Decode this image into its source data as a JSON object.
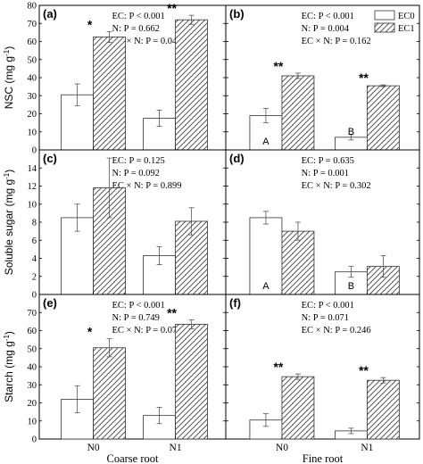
{
  "chart_data": {
    "type": "bar",
    "layout": "3x2 grid of grouped bar panels with shared axes",
    "legend": {
      "placement": "top-right",
      "entries": [
        {
          "name": "EC0",
          "pattern": "plain"
        },
        {
          "name": "EC1",
          "pattern": "hatched"
        }
      ]
    },
    "x_groups": [
      "Coarse root",
      "Fine root"
    ],
    "x_ticks": [
      "N0",
      "N1"
    ],
    "rows": [
      {
        "ylabel_main": "NSC (mg g",
        "ylabel_sup": "-1",
        "ylabel_end": ")",
        "ylim": [
          0,
          80
        ],
        "ticks": [
          0,
          10,
          20,
          30,
          40,
          50,
          60,
          70,
          80
        ],
        "panels": [
          {
            "letter": "(a)",
            "stats": [
              "EC: P < 0.001",
              "N: P = 0.662",
              "EC × N: P = 0.041"
            ],
            "series": [
              {
                "name": "EC0",
                "values": [
                  30.5,
                  17.5
                ],
                "errors": [
                  6,
                  4.5
                ]
              },
              {
                "name": "EC1",
                "values": [
                  62.5,
                  72
                ],
                "errors": [
                  3,
                  2.5
                ]
              }
            ],
            "significance": [
              "*",
              "**"
            ],
            "group_letters": [
              null,
              null
            ]
          },
          {
            "letter": "(b)",
            "stats": [
              "EC: P < 0.001",
              "N: P = 0.004",
              "EC × N: P = 0.162"
            ],
            "series": [
              {
                "name": "EC0",
                "values": [
                  19,
                  7
                ],
                "errors": [
                  4,
                  1.5
                ]
              },
              {
                "name": "EC1",
                "values": [
                  41,
                  35.5
                ],
                "errors": [
                  1.5,
                  0.5
                ]
              }
            ],
            "significance": [
              "**",
              "**"
            ],
            "group_letters": [
              "A",
              "B"
            ]
          }
        ]
      },
      {
        "ylabel_main": "Soluble sugar (mg g",
        "ylabel_sup": "-1",
        "ylabel_end": ")",
        "ylim": [
          0,
          16
        ],
        "ticks": [
          0,
          2,
          4,
          6,
          8,
          10,
          12,
          14,
          16
        ],
        "panels": [
          {
            "letter": "(c)",
            "stats": [
              "EC: P = 0.125",
              "N: P = 0.092",
              "EC × N: P = 0.899"
            ],
            "series": [
              {
                "name": "EC0",
                "values": [
                  8.5,
                  4.3
                ],
                "errors": [
                  1.5,
                  1.0
                ]
              },
              {
                "name": "EC1",
                "values": [
                  11.8,
                  8.1
                ],
                "errors": [
                  3.3,
                  1.5
                ]
              }
            ],
            "significance": [
              null,
              null
            ],
            "group_letters": [
              null,
              null
            ]
          },
          {
            "letter": "(d)",
            "stats": [
              "EC: P = 0.635",
              "N: P = 0.001",
              "EC × N: P = 0.302"
            ],
            "series": [
              {
                "name": "EC0",
                "values": [
                  8.5,
                  2.5
                ],
                "errors": [
                  0.7,
                  0.6
                ]
              },
              {
                "name": "EC1",
                "values": [
                  7.0,
                  3.1
                ],
                "errors": [
                  1.0,
                  1.2
                ]
              }
            ],
            "significance": [
              null,
              null
            ],
            "group_letters": [
              "A",
              "B"
            ]
          }
        ]
      },
      {
        "ylabel_main": "Starch (mg g",
        "ylabel_sup": "-1",
        "ylabel_end": ")",
        "ylim": [
          0,
          80
        ],
        "ticks": [
          0,
          10,
          20,
          30,
          40,
          50,
          60,
          70,
          80
        ],
        "panels": [
          {
            "letter": "(e)",
            "stats": [
              "EC: P < 0.001",
              "N: P = 0.749",
              "EC × N: P = 0.075"
            ],
            "series": [
              {
                "name": "EC0",
                "values": [
                  22,
                  13
                ],
                "errors": [
                  7.5,
                  4.5
                ]
              },
              {
                "name": "EC1",
                "values": [
                  50.5,
                  63.5
                ],
                "errors": [
                  5,
                  2.5
                ]
              }
            ],
            "significance": [
              "*",
              "**"
            ],
            "group_letters": [
              null,
              null
            ]
          },
          {
            "letter": "(f)",
            "stats": [
              "EC: P < 0.001",
              "N: P = 0.071",
              "EC × N: P = 0.246"
            ],
            "series": [
              {
                "name": "EC0",
                "values": [
                  10.5,
                  4.5
                ],
                "errors": [
                  3.5,
                  1.5
                ]
              },
              {
                "name": "EC1",
                "values": [
                  34.5,
                  32.5
                ],
                "errors": [
                  1.5,
                  1.5
                ]
              }
            ],
            "significance": [
              "**",
              "**"
            ],
            "group_letters": [
              null,
              null
            ]
          }
        ]
      }
    ]
  }
}
